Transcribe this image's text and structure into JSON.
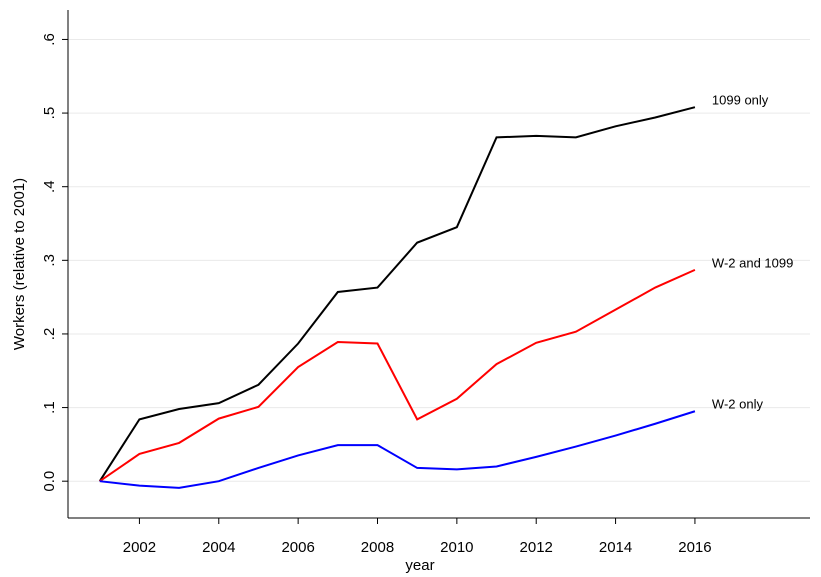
{
  "chart_data": {
    "type": "line",
    "x_label": "year",
    "y_label": "Workers (relative to 2001)",
    "x": [
      2001,
      2002,
      2003,
      2004,
      2005,
      2006,
      2007,
      2008,
      2009,
      2010,
      2011,
      2012,
      2013,
      2014,
      2015,
      2016
    ],
    "series": [
      {
        "name": "1099 only",
        "color": "#000000",
        "values": [
          0,
          0.084,
          0.098,
          0.106,
          0.131,
          0.187,
          0.257,
          0.263,
          0.324,
          0.345,
          0.467,
          0.469,
          0.467,
          0.482,
          0.494,
          0.508
        ]
      },
      {
        "name": "W-2 and 1099",
        "color": "#ff0000",
        "values": [
          0,
          0.037,
          0.052,
          0.085,
          0.101,
          0.155,
          0.189,
          0.187,
          0.084,
          0.112,
          0.159,
          0.188,
          0.203,
          0.233,
          0.263,
          0.287
        ]
      },
      {
        "name": "W-2 only",
        "color": "#0000ff",
        "values": [
          0,
          -0.006,
          -0.009,
          0.0,
          0.018,
          0.035,
          0.049,
          0.049,
          0.018,
          0.016,
          0.02,
          0.033,
          0.047,
          0.062,
          0.078,
          0.095
        ]
      }
    ],
    "xlim": [
      2000.2,
      2018.9
    ],
    "xticks": [
      2002,
      2004,
      2006,
      2008,
      2010,
      2012,
      2014,
      2016
    ],
    "ylim": [
      -0.05,
      0.64
    ],
    "yticks": [
      {
        "value": 0,
        "label": "0.0"
      },
      {
        "value": 0.1,
        "label": ".1"
      },
      {
        "value": 0.2,
        "label": ".2"
      },
      {
        "value": 0.3,
        "label": ".3"
      },
      {
        "value": 0.4,
        "label": ".4"
      },
      {
        "value": 0.5,
        "label": ".5"
      },
      {
        "value": 0.6,
        "label": ".6"
      }
    ],
    "grid": true
  }
}
